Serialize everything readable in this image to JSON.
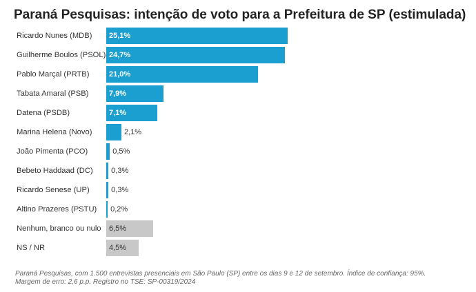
{
  "title": "Paraná Pesquisas: intenção de voto para a Prefeitura de SP (estimulada)",
  "colors": {
    "primary": "#1a9fd0",
    "neutral": "#c8c8c8"
  },
  "chart_data": {
    "type": "bar",
    "orientation": "horizontal",
    "title": "Paraná Pesquisas: intenção de voto para a Prefeitura de SP (estimulada)",
    "categories": [
      "Ricardo Nunes (MDB)",
      "Guilherme Boulos (PSOL)",
      "Pablo Marçal (PRTB)",
      "Tabata Amaral (PSB)",
      "Datena (PSDB)",
      "Marina Helena (Novo)",
      "João Pimenta (PCO)",
      "Bebeto Haddaad (DC)",
      "Ricardo Senese (UP)",
      "Altino Prazeres (PSTU)",
      "Nenhum, branco ou nulo",
      "NS / NR"
    ],
    "values": [
      25.1,
      24.7,
      21.0,
      7.9,
      7.1,
      2.1,
      0.5,
      0.3,
      0.3,
      0.2,
      6.5,
      4.5
    ],
    "value_labels": [
      "25,1%",
      "24,7%",
      "21,0%",
      "7,9%",
      "7,1%",
      "2,1%",
      "0,5%",
      "0,3%",
      "0,3%",
      "0,2%",
      "6,5%",
      "4,5%"
    ],
    "bar_colors": [
      "#1a9fd0",
      "#1a9fd0",
      "#1a9fd0",
      "#1a9fd0",
      "#1a9fd0",
      "#1a9fd0",
      "#1a9fd0",
      "#1a9fd0",
      "#1a9fd0",
      "#1a9fd0",
      "#c8c8c8",
      "#c8c8c8"
    ],
    "xlim": [
      0,
      25.1
    ],
    "grid": false
  },
  "footer": {
    "line1": "Paraná Pesquisas, com 1.500 entrevistas presenciais em São Paulo (SP) entre os dias 9 e 12 de setembro. Índice de confiança: 95%.",
    "line2": "Margem de erro: 2,6 p.p. Registro no TSE: SP-00319/2024"
  }
}
